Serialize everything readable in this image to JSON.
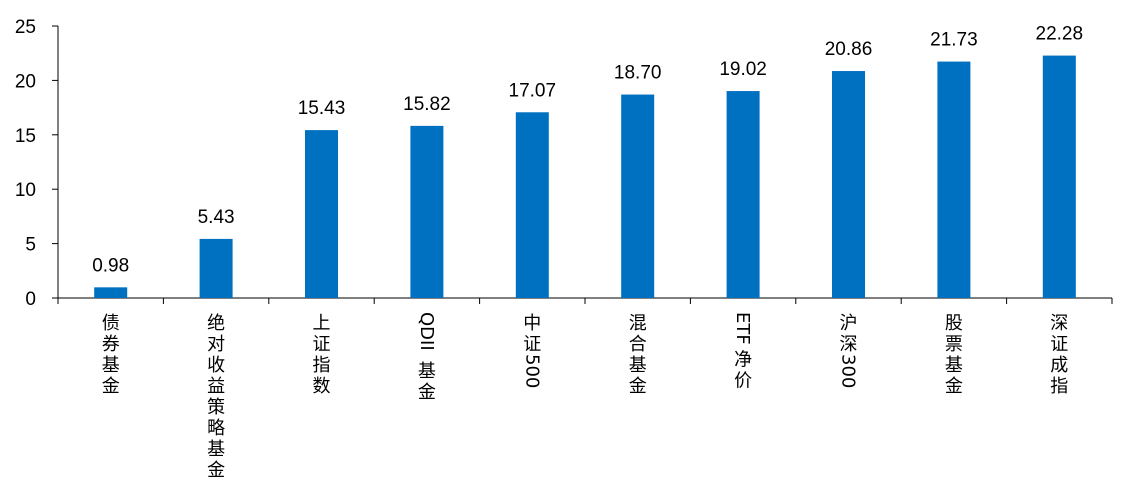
{
  "chart_data": {
    "type": "bar",
    "title": "",
    "xlabel": "",
    "ylabel": "",
    "ylim": [
      0,
      25
    ],
    "yticks": [
      0,
      5,
      10,
      15,
      20,
      25
    ],
    "grid": false,
    "legend": "none",
    "bar_color": "#0070C0",
    "categories": [
      "债券基金",
      "绝对收益策略基金",
      "上证指数",
      "QDII基金",
      "中证500",
      "混合基金",
      "ETF净价",
      "沪深300",
      "股票基金",
      "深证成指"
    ],
    "values": [
      0.98,
      5.43,
      15.43,
      15.82,
      17.07,
      18.7,
      19.02,
      20.86,
      21.73,
      22.28
    ],
    "data_labels": [
      "0.98",
      "5.43",
      "15.43",
      "15.82",
      "17.07",
      "18.70",
      "19.02",
      "20.86",
      "21.73",
      "22.28"
    ]
  }
}
